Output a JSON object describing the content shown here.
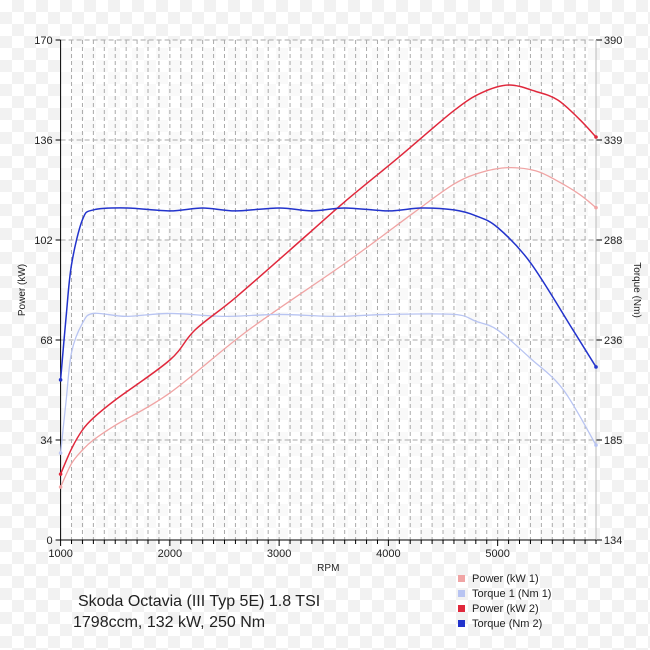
{
  "chart_data": {
    "type": "line",
    "title": "Skoda Octavia (III Typ 5E) 1.8 TSI",
    "subtitle": "1798ccm, 132 kW, 250 Nm",
    "xlabel": "RPM",
    "ylabel": "Power (kW)",
    "y2label": "Torque (Nm)",
    "xlim": [
      1000,
      5900
    ],
    "ylim": [
      0,
      170
    ],
    "y2lim": [
      134,
      390
    ],
    "xticks": [
      "1000",
      "2000",
      "3000",
      "4000",
      "5000"
    ],
    "xtick_values": [
      1000,
      2000,
      3000,
      4000,
      5000
    ],
    "yticks": [
      "0",
      "34",
      "68",
      "102",
      "136",
      "170"
    ],
    "ytick_values": [
      0,
      34,
      68,
      102,
      136,
      170
    ],
    "y2ticks": [
      "134",
      "185",
      "236",
      "288",
      "339",
      "390"
    ],
    "y2tick_values": [
      134,
      185.2,
      236.4,
      287.6,
      338.8,
      390
    ],
    "grid": true,
    "legend_position": "bottom-right",
    "series": [
      {
        "name": "Power (kW 1)",
        "axis": "left",
        "color": "#f0a4a4",
        "x": [
          1000,
          1100,
          1200,
          1300,
          1500,
          2000,
          2720,
          3600,
          4240,
          4600,
          4850,
          5100,
          5350,
          5550,
          5750,
          5900
        ],
        "values": [
          18,
          26,
          30.6,
          34,
          39,
          50,
          71.4,
          94,
          111.5,
          121,
          125,
          126.6,
          125.5,
          122,
          117.5,
          113
        ]
      },
      {
        "name": "Torque 1 (Nm 1)",
        "axis": "right",
        "color": "#b8c4f2",
        "x": [
          1000,
          1050,
          1100,
          1200,
          1300,
          1600,
          2000,
          2500,
          3000,
          3500,
          4000,
          4600,
          4800,
          5000,
          5300,
          5600,
          5900
        ],
        "values": [
          178.5,
          205,
          230,
          245,
          250,
          248.5,
          250,
          248.5,
          249.5,
          248.5,
          249.5,
          249.5,
          246,
          241.5,
          227,
          211,
          182.6
        ]
      },
      {
        "name": "Power (kW 2)",
        "axis": "left",
        "color": "#e0283c",
        "x": [
          1000,
          1100,
          1200,
          1300,
          1500,
          2000,
          2230,
          2610,
          3255,
          3600,
          4090,
          4600,
          4850,
          5100,
          5350,
          5550,
          5750,
          5900
        ],
        "values": [
          22.4,
          31,
          37.4,
          41.5,
          47.6,
          61.2,
          71.4,
          82.7,
          103.7,
          115,
          130,
          146,
          152,
          154.7,
          152.5,
          149.6,
          143,
          137
        ]
      },
      {
        "name": "Torque (Nm 2)",
        "axis": "right",
        "color": "#2233cc",
        "x": [
          1000,
          1050,
          1100,
          1200,
          1300,
          1600,
          2000,
          2300,
          2600,
          3000,
          3300,
          3600,
          4000,
          4300,
          4600,
          4800,
          5000,
          5300,
          5690,
          5900
        ],
        "values": [
          216,
          248,
          275,
          298,
          303,
          304,
          302.5,
          304,
          302.5,
          304,
          302.5,
          304,
          302.5,
          304,
          303,
          300,
          294,
          276,
          241.5,
          222.6
        ]
      }
    ]
  }
}
